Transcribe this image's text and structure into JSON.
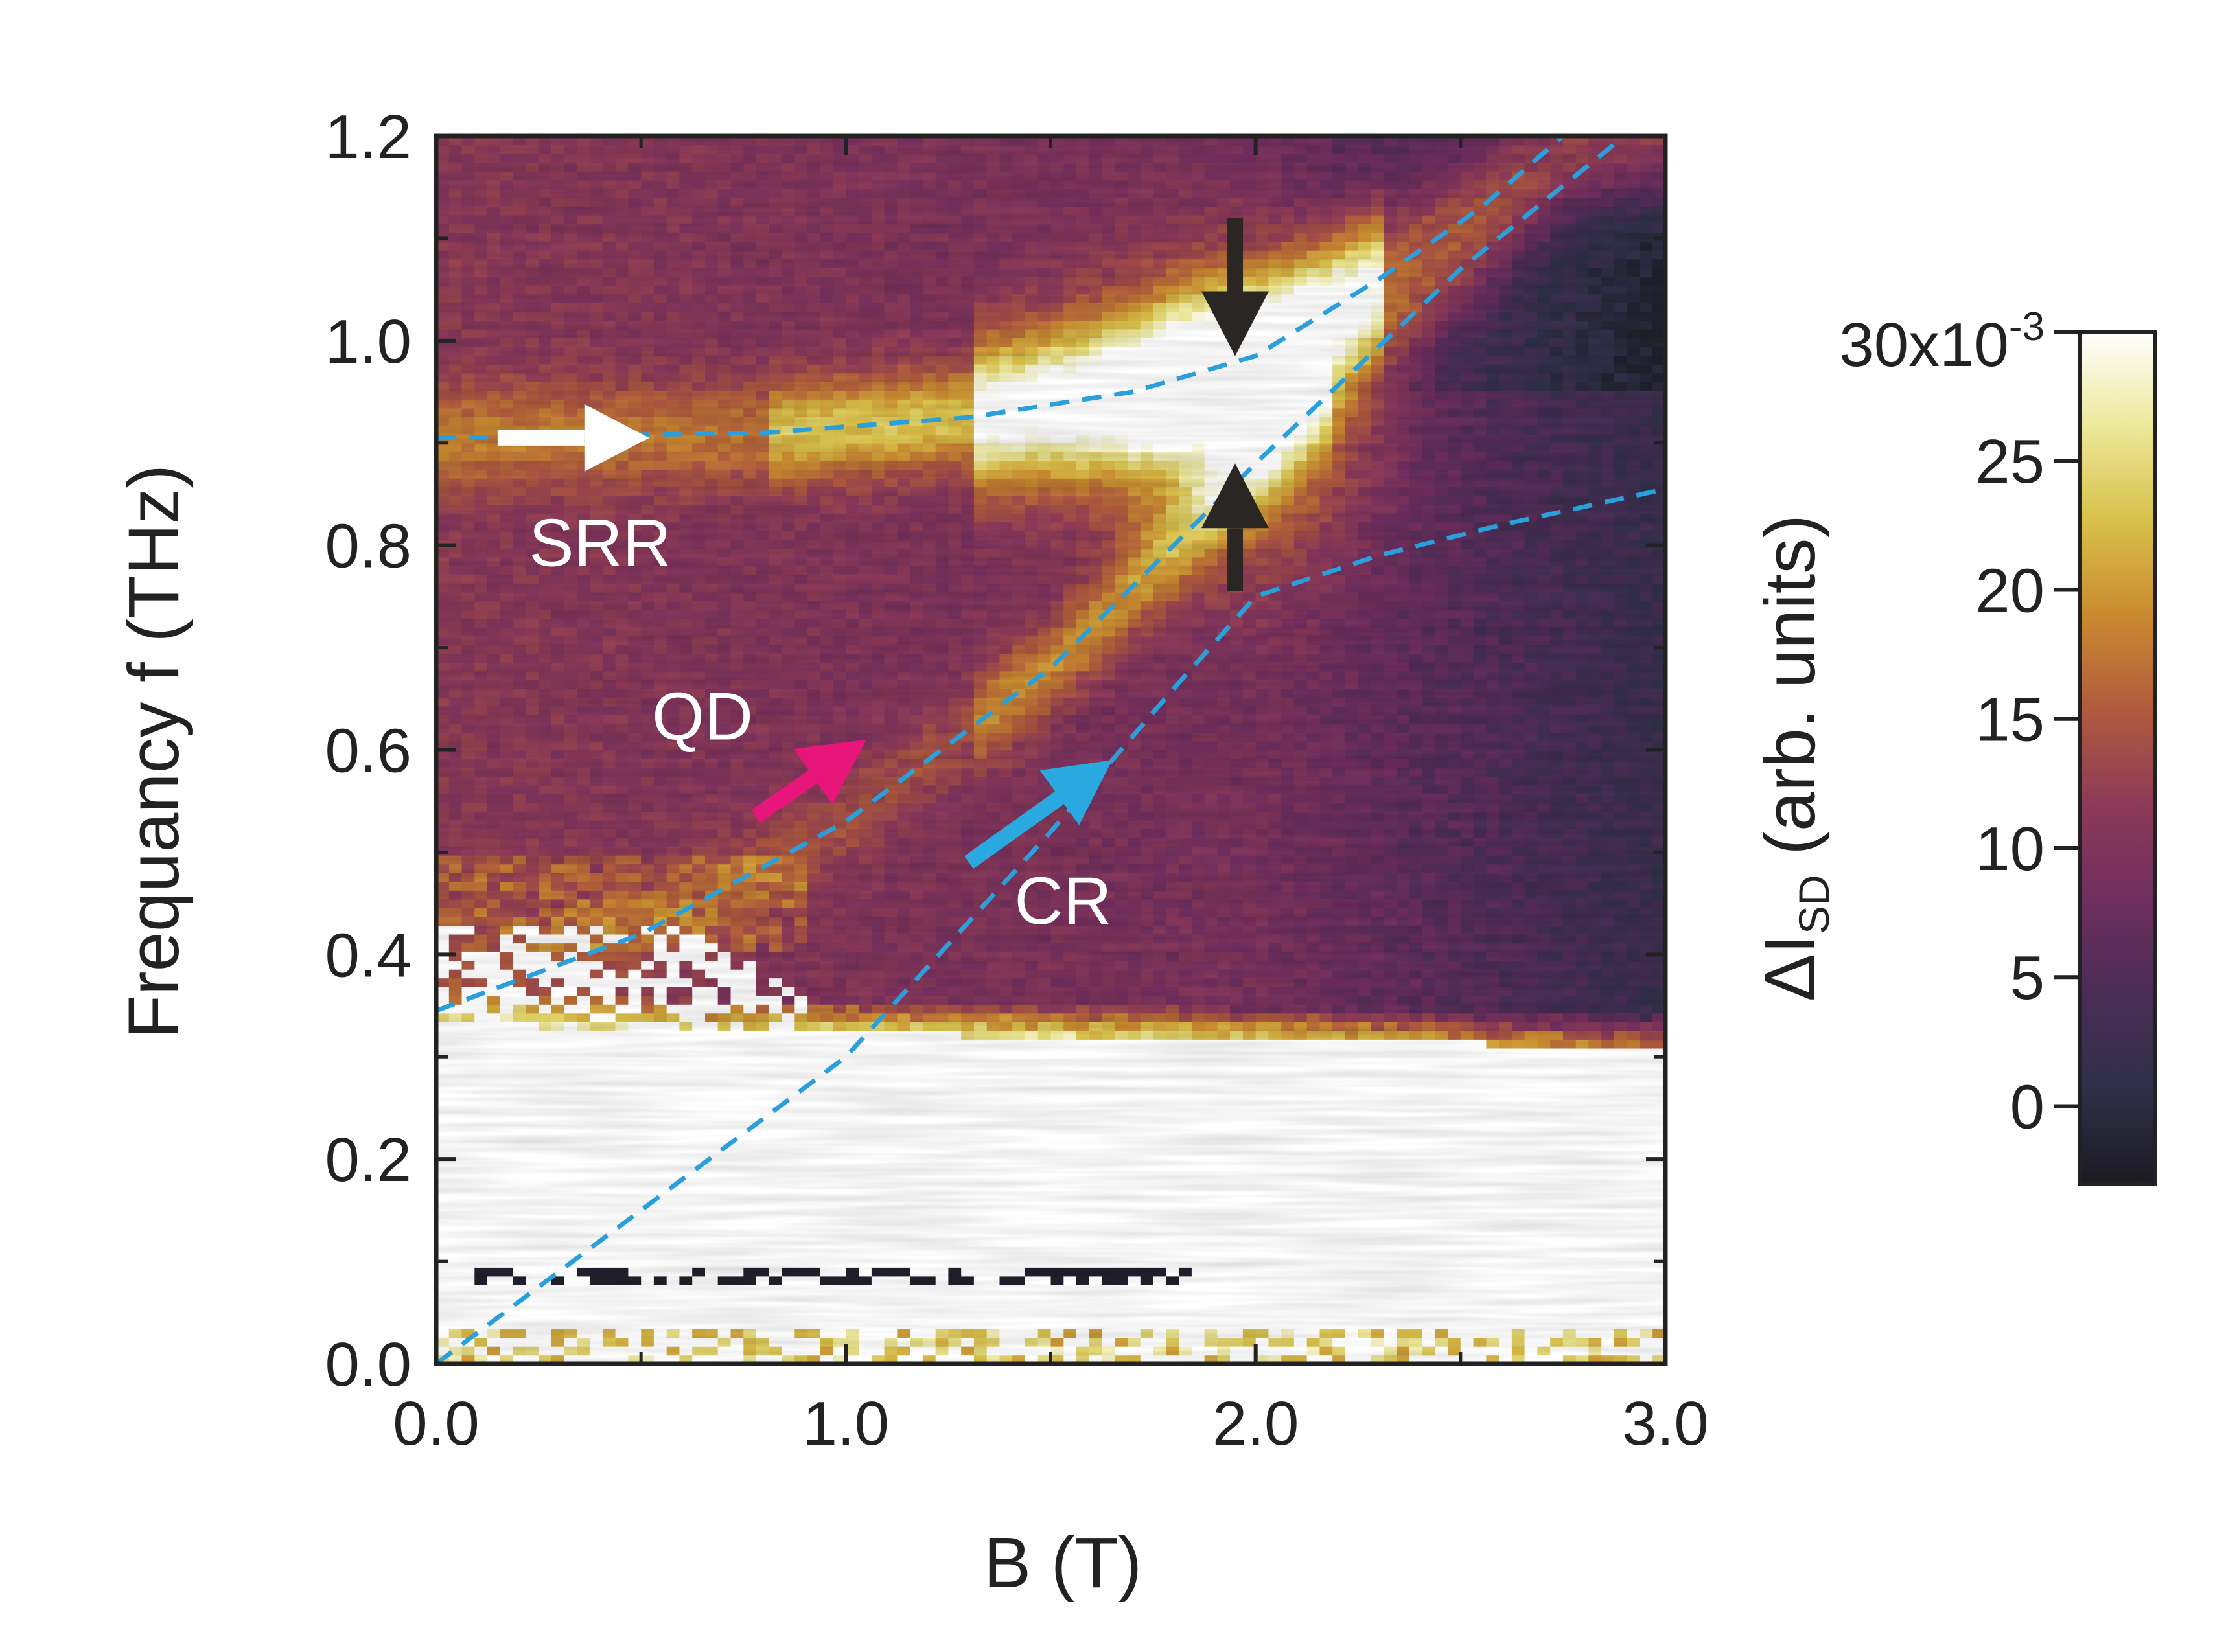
{
  "chart_data": {
    "type": "heatmap",
    "xlabel": "B (T)",
    "ylabel": "Frequancy f (THz)",
    "xlim": [
      0.0,
      3.0
    ],
    "ylim": [
      0.0,
      1.2
    ],
    "xticks": [
      "0.0",
      "1.0",
      "2.0",
      "3.0"
    ],
    "yticks": [
      "0.0",
      "0.2",
      "0.4",
      "0.6",
      "0.8",
      "1.0",
      "1.2"
    ],
    "xtick_values": [
      0.0,
      1.0,
      2.0,
      3.0
    ],
    "ytick_values": [
      0.0,
      0.2,
      0.4,
      0.6,
      0.8,
      1.0,
      1.2
    ],
    "colorbar": {
      "label_main": "ΔI",
      "label_sub": "SD",
      "label_rest": " (arb. units)",
      "top_label_base": "30x10",
      "top_label_exp": "-3",
      "range": [
        -0.003,
        0.03
      ],
      "ticks": [
        "0",
        "5",
        "10",
        "15",
        "20",
        "25"
      ],
      "tick_values": [
        0,
        5,
        10,
        15,
        20,
        25
      ],
      "top_tick_value": 30,
      "scale": 0.001
    },
    "colormap": [
      "#1b1a22",
      "#2f3048",
      "#4a2d55",
      "#6f2e5e",
      "#8c3a58",
      "#b05a3e",
      "#c98a30",
      "#d8c04a",
      "#ece89a",
      "#ffffff"
    ],
    "dashed_line_color": "#2a9fdb",
    "fit_lines": [
      {
        "name": "SRR",
        "points": [
          [
            0.0,
            0.905
          ],
          [
            0.8,
            0.91
          ],
          [
            1.3,
            0.925
          ],
          [
            1.7,
            0.95
          ],
          [
            2.0,
            0.985
          ],
          [
            2.3,
            1.06
          ],
          [
            2.55,
            1.13
          ],
          [
            2.75,
            1.2
          ]
        ]
      },
      {
        "name": "QD",
        "points": [
          [
            0.0,
            0.345
          ],
          [
            0.5,
            0.42
          ],
          [
            1.0,
            0.53
          ],
          [
            1.5,
            0.68
          ],
          [
            2.0,
            0.88
          ],
          [
            2.5,
            1.07
          ],
          [
            2.9,
            1.2
          ]
        ]
      },
      {
        "name": "CR",
        "points": [
          [
            0.0,
            0.0
          ],
          [
            1.0,
            0.3
          ],
          [
            1.5,
            0.52
          ],
          [
            1.8,
            0.66
          ],
          [
            2.0,
            0.75
          ],
          [
            2.3,
            0.79
          ],
          [
            2.6,
            0.82
          ],
          [
            3.0,
            0.855
          ]
        ]
      }
    ],
    "annotations": [
      {
        "text": "SRR",
        "x": 0.4,
        "y": 0.78
      },
      {
        "text": "QD",
        "x": 0.65,
        "y": 0.61
      },
      {
        "text": "CR",
        "x": 1.53,
        "y": 0.43
      }
    ],
    "arrows": [
      {
        "name": "srr-arrow",
        "color": "#ffffff",
        "from": [
          0.15,
          0.905
        ],
        "to": [
          0.52,
          0.905
        ]
      },
      {
        "name": "qd-arrow",
        "color": "#e8157b",
        "from": [
          0.78,
          0.535
        ],
        "to": [
          1.05,
          0.61
        ]
      },
      {
        "name": "cr-arrow",
        "color": "#2aa9e0",
        "from": [
          1.3,
          0.49
        ],
        "to": [
          1.65,
          0.59
        ]
      },
      {
        "name": "gap-arrow-down",
        "color": "#2a2624",
        "from": [
          1.95,
          1.12
        ],
        "to": [
          1.95,
          0.985
        ]
      },
      {
        "name": "gap-arrow-up",
        "color": "#2a2624",
        "from": [
          1.95,
          0.755
        ],
        "to": [
          1.95,
          0.88
        ]
      }
    ]
  }
}
